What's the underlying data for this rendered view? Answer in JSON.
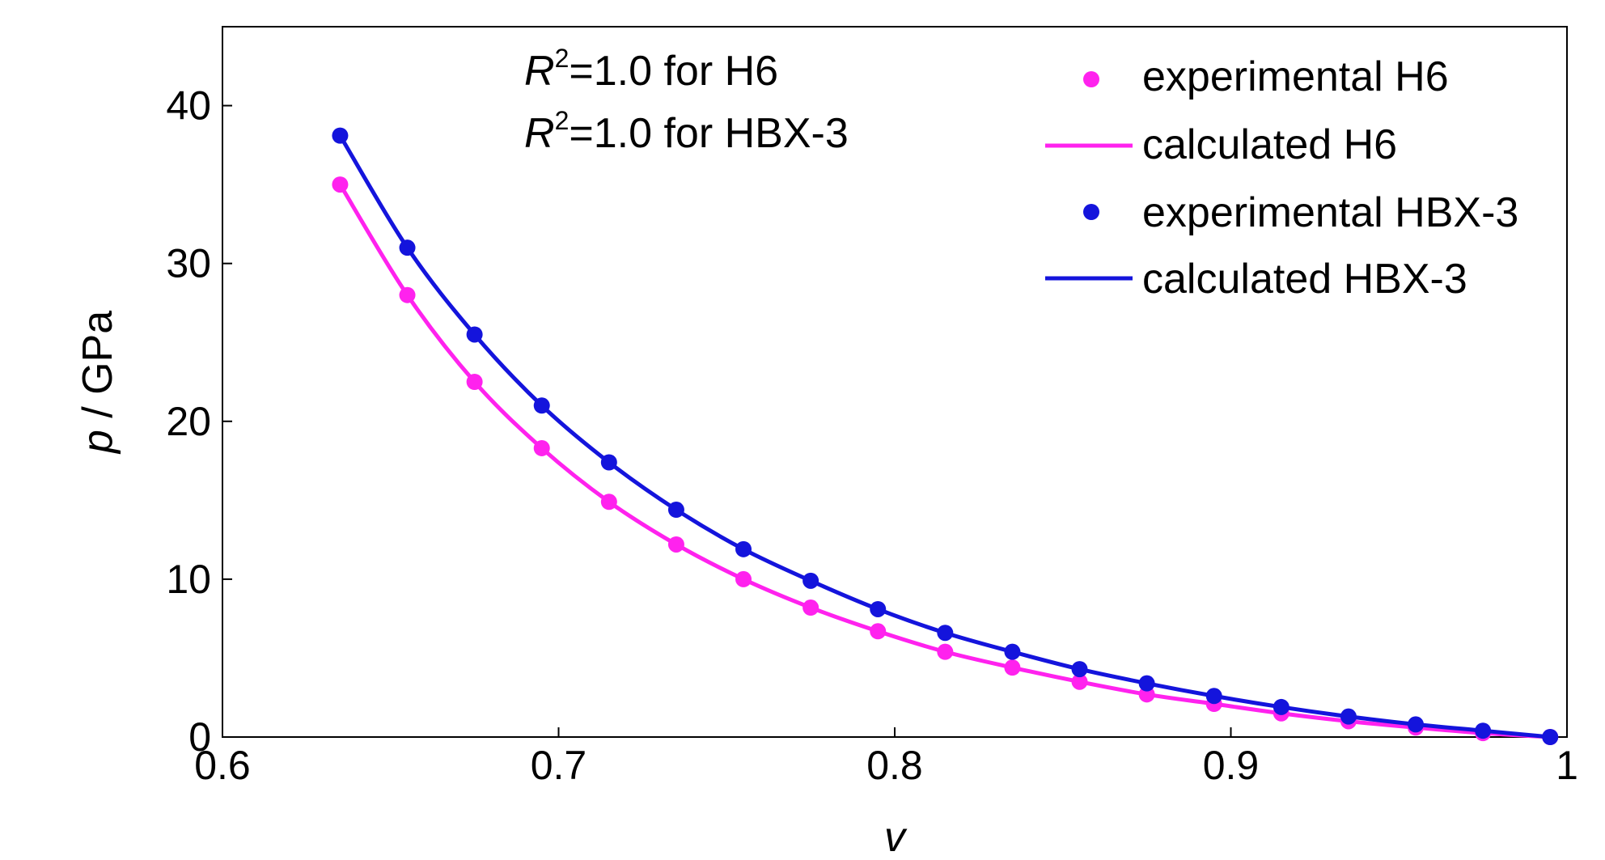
{
  "chart_data": {
    "type": "line",
    "xlabel": "v",
    "ylabel_symbol": "p",
    "ylabel_unit": " / GPa",
    "xlim": [
      0.6,
      1.0
    ],
    "ylim": [
      0,
      45
    ],
    "x_ticks": [
      0.6,
      0.7,
      0.8,
      0.9,
      1.0
    ],
    "x_tick_labels": [
      "0.6",
      "0.7",
      "0.8",
      "0.9",
      "1"
    ],
    "y_ticks": [
      0,
      10,
      20,
      30,
      40
    ],
    "y_tick_labels": [
      "0",
      "10",
      "20",
      "30",
      "40"
    ],
    "grid": false,
    "legend_position": "top-right",
    "annotations": [
      {
        "symbol": "R",
        "superscript": "2",
        "text": "=1.0 for H6"
      },
      {
        "symbol": "R",
        "superscript": "2",
        "text": "=1.0 for HBX-3"
      }
    ],
    "legend": [
      {
        "label": "experimental H6",
        "marker": "dot",
        "color": "#ff22ee"
      },
      {
        "label": "calculated H6",
        "marker": "line",
        "color": "#ff22ee"
      },
      {
        "label": "experimental HBX-3",
        "marker": "dot",
        "color": "#1414dc"
      },
      {
        "label": "calculated HBX-3",
        "marker": "line",
        "color": "#1414dc"
      }
    ],
    "series": [
      {
        "name": "H6",
        "color": "#ff22ee",
        "x": [
          0.635,
          0.655,
          0.675,
          0.695,
          0.715,
          0.735,
          0.755,
          0.775,
          0.795,
          0.815,
          0.835,
          0.855,
          0.875,
          0.895,
          0.915,
          0.935,
          0.955,
          0.975,
          0.995
        ],
        "y": [
          35.0,
          28.0,
          22.5,
          18.3,
          14.9,
          12.2,
          10.0,
          8.2,
          6.7,
          5.4,
          4.4,
          3.5,
          2.7,
          2.1,
          1.5,
          1.0,
          0.6,
          0.25,
          0.0
        ]
      },
      {
        "name": "HBX-3",
        "color": "#1414dc",
        "x": [
          0.635,
          0.655,
          0.675,
          0.695,
          0.715,
          0.735,
          0.755,
          0.775,
          0.795,
          0.815,
          0.835,
          0.855,
          0.875,
          0.895,
          0.915,
          0.935,
          0.955,
          0.975,
          0.995
        ],
        "y": [
          38.1,
          31.0,
          25.5,
          21.0,
          17.4,
          14.4,
          11.9,
          9.9,
          8.1,
          6.6,
          5.4,
          4.3,
          3.4,
          2.6,
          1.9,
          1.3,
          0.8,
          0.4,
          0.0
        ]
      }
    ]
  }
}
